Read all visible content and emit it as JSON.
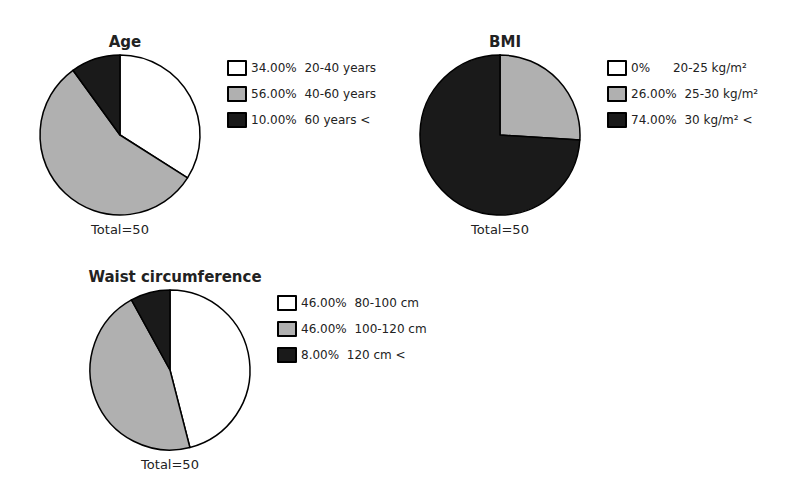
{
  "chart_data": [
    {
      "type": "pie",
      "title": "Age",
      "categories": [
        "34.00%  20-40 years",
        "56.00%  40-60 years",
        "10.00%  60 years <"
      ],
      "values": [
        34.0,
        56.0,
        10.0
      ],
      "colors": [
        "#ffffff",
        "#b0b0b0",
        "#1a1a1a"
      ],
      "annotation": "Total=50",
      "legend": "right"
    },
    {
      "type": "pie",
      "title": "BMI",
      "categories": [
        "0%      20-25 kg/m²",
        "26.00%  25-30 kg/m²",
        "74.00%  30 kg/m² <"
      ],
      "values": [
        0.01,
        26.0,
        74.0
      ],
      "colors": [
        "#ffffff",
        "#b0b0b0",
        "#1a1a1a"
      ],
      "annotation": "Total=50",
      "legend": "right"
    },
    {
      "type": "pie",
      "title": "Waist circumference",
      "categories": [
        "46.00%  80-100 cm",
        "46.00%  100-120 cm",
        "8.00%  120 cm <"
      ],
      "values": [
        46.0,
        46.0,
        8.0
      ],
      "colors": [
        "#ffffff",
        "#b0b0b0",
        "#1a1a1a"
      ],
      "annotation": "Total=50",
      "legend": "right"
    }
  ]
}
